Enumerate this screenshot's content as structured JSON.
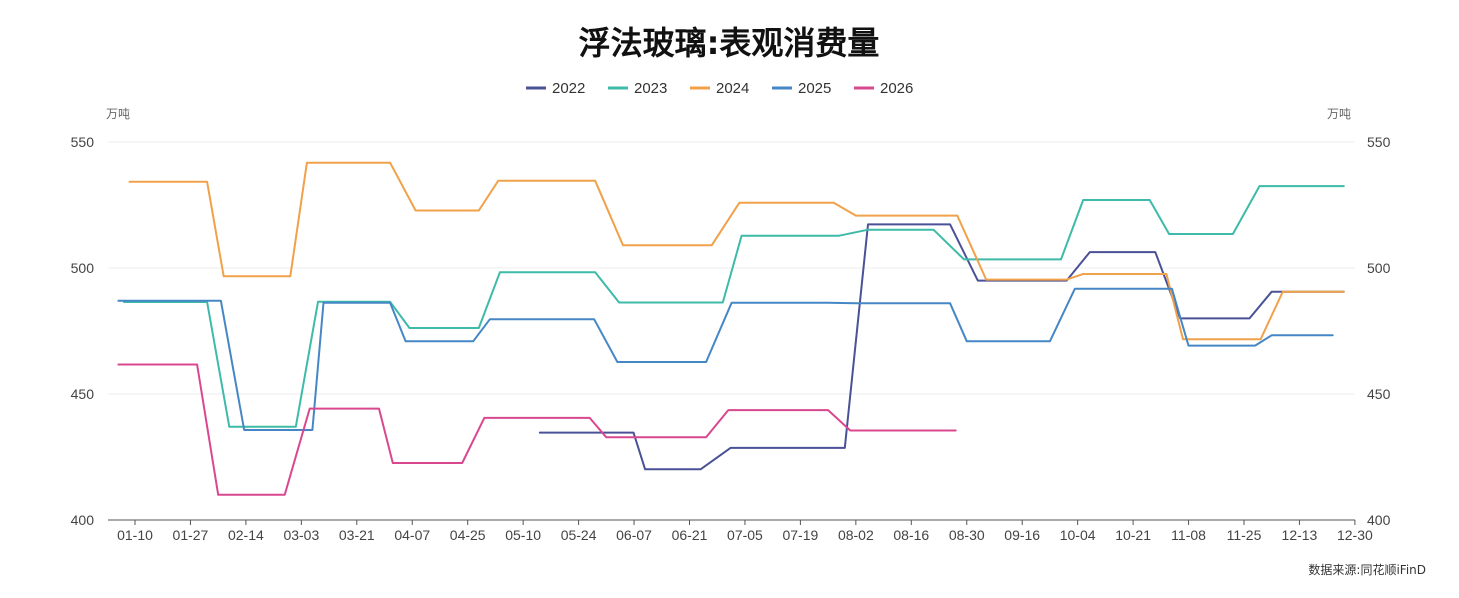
{
  "chart_data": {
    "type": "line",
    "title": "浮法玻璃:表观消费量",
    "units": {
      "left": "万吨",
      "right": "万吨"
    },
    "source": "数据来源:同花顺iFinD",
    "ylim": [
      400,
      550
    ],
    "yticks": [
      400,
      450,
      500,
      550
    ],
    "categories": [
      "01-10",
      "01-27",
      "02-14",
      "03-03",
      "03-21",
      "04-07",
      "04-25",
      "05-10",
      "05-24",
      "06-07",
      "06-21",
      "07-05",
      "07-19",
      "08-02",
      "08-16",
      "08-30",
      "09-16",
      "10-04",
      "10-21",
      "11-08",
      "11-25",
      "12-13",
      "12-30"
    ],
    "legend_position": "top-center",
    "grid": true,
    "series": [
      {
        "name": "2022",
        "color": "#4a5196",
        "points": [
          [
            7.3,
            434.7
          ],
          [
            8.2,
            434.7
          ],
          [
            8.9,
            434.7
          ],
          [
            8.99,
            434.7
          ],
          [
            9.2,
            420.1
          ],
          [
            10.0,
            420.1
          ],
          [
            10.2,
            420.1
          ],
          [
            10.74,
            428.6
          ],
          [
            11.5,
            428.6
          ],
          [
            12.3,
            428.6
          ],
          [
            12.8,
            428.6
          ],
          [
            13.22,
            517.3
          ],
          [
            14.0,
            517.3
          ],
          [
            14.7,
            517.3
          ],
          [
            15.2,
            495.0
          ],
          [
            15.8,
            495.0
          ],
          [
            16.4,
            495.0
          ],
          [
            16.8,
            495.0
          ],
          [
            17.22,
            506.3
          ],
          [
            17.8,
            506.3
          ],
          [
            18.4,
            506.3
          ],
          [
            18.85,
            480.0
          ],
          [
            19.5,
            480.0
          ],
          [
            20.1,
            480.0
          ],
          [
            20.5,
            490.6
          ],
          [
            21.2,
            490.6
          ],
          [
            21.8,
            490.6
          ]
        ]
      },
      {
        "name": "2023",
        "color": "#3dbaa8",
        "points": [
          [
            -0.2,
            486.5
          ],
          [
            0.4,
            486.5
          ],
          [
            1.0,
            486.5
          ],
          [
            1.3,
            486.5
          ],
          [
            1.7,
            437.0
          ],
          [
            2.3,
            437.0
          ],
          [
            2.9,
            437.0
          ],
          [
            3.3,
            486.6
          ],
          [
            3.9,
            486.6
          ],
          [
            4.6,
            486.6
          ],
          [
            4.95,
            476.2
          ],
          [
            5.5,
            476.2
          ],
          [
            6.2,
            476.2
          ],
          [
            6.58,
            498.3
          ],
          [
            7.2,
            498.3
          ],
          [
            7.8,
            498.3
          ],
          [
            8.3,
            498.3
          ],
          [
            8.73,
            486.3
          ],
          [
            9.3,
            486.3
          ],
          [
            9.9,
            486.3
          ],
          [
            10.6,
            486.3
          ],
          [
            10.94,
            512.8
          ],
          [
            11.5,
            512.8
          ],
          [
            12.1,
            512.8
          ],
          [
            12.7,
            512.8
          ],
          [
            13.22,
            515.2
          ],
          [
            13.8,
            515.2
          ],
          [
            14.4,
            515.2
          ],
          [
            14.95,
            503.4
          ],
          [
            15.5,
            503.4
          ],
          [
            16.1,
            503.4
          ],
          [
            16.7,
            503.4
          ],
          [
            17.1,
            527.0
          ],
          [
            17.7,
            527.0
          ],
          [
            18.3,
            527.0
          ],
          [
            18.65,
            513.5
          ],
          [
            19.2,
            513.5
          ],
          [
            19.8,
            513.5
          ],
          [
            20.28,
            532.5
          ],
          [
            20.9,
            532.5
          ],
          [
            21.5,
            532.5
          ],
          [
            21.8,
            532.5
          ]
        ]
      },
      {
        "name": "2024",
        "color": "#f0a14a",
        "points": [
          [
            -0.1,
            534.2
          ],
          [
            0.5,
            534.2
          ],
          [
            1.1,
            534.2
          ],
          [
            1.3,
            534.2
          ],
          [
            1.6,
            496.7
          ],
          [
            2.2,
            496.7
          ],
          [
            2.8,
            496.7
          ],
          [
            3.1,
            541.8
          ],
          [
            3.7,
            541.8
          ],
          [
            4.3,
            541.8
          ],
          [
            4.6,
            541.8
          ],
          [
            5.06,
            522.8
          ],
          [
            5.6,
            522.8
          ],
          [
            6.2,
            522.8
          ],
          [
            6.55,
            534.6
          ],
          [
            7.1,
            534.6
          ],
          [
            7.7,
            534.6
          ],
          [
            8.3,
            534.6
          ],
          [
            8.8,
            509.0
          ],
          [
            9.4,
            509.0
          ],
          [
            10.0,
            509.0
          ],
          [
            10.4,
            509.0
          ],
          [
            10.9,
            525.9
          ],
          [
            11.5,
            525.9
          ],
          [
            12.1,
            525.9
          ],
          [
            12.6,
            525.9
          ],
          [
            13.0,
            520.8
          ],
          [
            13.6,
            520.8
          ],
          [
            14.2,
            520.8
          ],
          [
            14.83,
            520.8
          ],
          [
            15.35,
            495.4
          ],
          [
            15.9,
            495.4
          ],
          [
            16.5,
            495.4
          ],
          [
            16.8,
            495.4
          ],
          [
            17.1,
            497.6
          ],
          [
            17.7,
            497.6
          ],
          [
            18.3,
            497.6
          ],
          [
            18.6,
            497.6
          ],
          [
            18.9,
            471.7
          ],
          [
            19.5,
            471.7
          ],
          [
            20.1,
            471.7
          ],
          [
            20.3,
            471.7
          ],
          [
            20.7,
            490.6
          ],
          [
            21.3,
            490.6
          ],
          [
            21.8,
            490.6
          ]
        ]
      },
      {
        "name": "2025",
        "color": "#4587c6",
        "points": [
          [
            -0.3,
            487.0
          ],
          [
            0.4,
            487.0
          ],
          [
            1.0,
            487.0
          ],
          [
            1.55,
            487.0
          ],
          [
            1.97,
            435.7
          ],
          [
            2.6,
            435.7
          ],
          [
            3.2,
            435.7
          ],
          [
            3.4,
            486.2
          ],
          [
            4.0,
            486.2
          ],
          [
            4.6,
            486.2
          ],
          [
            4.88,
            470.9
          ],
          [
            5.5,
            470.9
          ],
          [
            6.1,
            470.9
          ],
          [
            6.4,
            479.7
          ],
          [
            7.0,
            479.7
          ],
          [
            7.6,
            479.7
          ],
          [
            8.28,
            479.7
          ],
          [
            8.7,
            462.7
          ],
          [
            9.3,
            462.7
          ],
          [
            9.9,
            462.7
          ],
          [
            10.3,
            462.7
          ],
          [
            10.76,
            486.2
          ],
          [
            11.3,
            486.2
          ],
          [
            11.9,
            486.2
          ],
          [
            12.5,
            486.2
          ],
          [
            13.0,
            486.0
          ],
          [
            13.6,
            486.0
          ],
          [
            14.2,
            486.0
          ],
          [
            14.7,
            486.0
          ],
          [
            15.0,
            470.9
          ],
          [
            15.6,
            470.9
          ],
          [
            16.2,
            470.9
          ],
          [
            16.5,
            470.9
          ],
          [
            16.95,
            491.8
          ],
          [
            17.5,
            491.8
          ],
          [
            18.1,
            491.8
          ],
          [
            18.7,
            491.8
          ],
          [
            19.0,
            469.2
          ],
          [
            19.6,
            469.2
          ],
          [
            20.2,
            469.2
          ],
          [
            20.5,
            473.3
          ],
          [
            21.1,
            473.3
          ],
          [
            21.6,
            473.3
          ]
        ]
      },
      {
        "name": "2026",
        "color": "#d9488f",
        "points": [
          [
            -0.3,
            461.7
          ],
          [
            0.4,
            461.7
          ],
          [
            1.0,
            461.7
          ],
          [
            1.12,
            461.7
          ],
          [
            1.5,
            410.0
          ],
          [
            2.1,
            410.0
          ],
          [
            2.7,
            410.0
          ],
          [
            3.15,
            444.2
          ],
          [
            3.8,
            444.2
          ],
          [
            4.4,
            444.2
          ],
          [
            4.65,
            422.6
          ],
          [
            5.3,
            422.6
          ],
          [
            5.9,
            422.6
          ],
          [
            6.3,
            440.5
          ],
          [
            6.9,
            440.5
          ],
          [
            7.5,
            440.5
          ],
          [
            8.2,
            440.5
          ],
          [
            8.5,
            432.8
          ],
          [
            9.1,
            432.8
          ],
          [
            9.7,
            432.8
          ],
          [
            10.3,
            432.8
          ],
          [
            10.7,
            443.6
          ],
          [
            11.3,
            443.6
          ],
          [
            11.9,
            443.6
          ],
          [
            12.5,
            443.6
          ],
          [
            12.9,
            435.5
          ],
          [
            13.5,
            435.5
          ],
          [
            14.1,
            435.5
          ],
          [
            14.8,
            435.5
          ]
        ]
      }
    ]
  }
}
